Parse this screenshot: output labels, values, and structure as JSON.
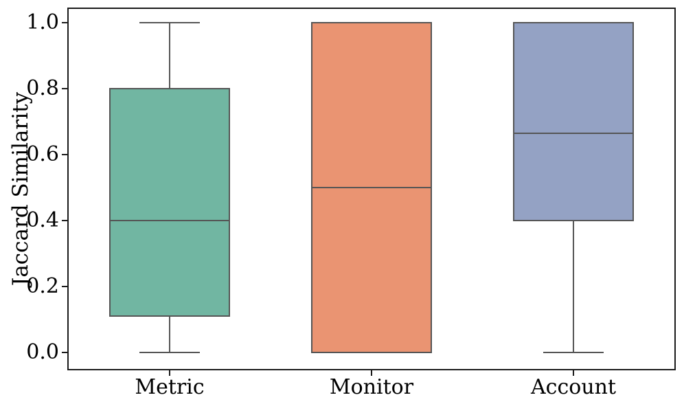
{
  "figure": {
    "background": "#ffffff",
    "spine_color": "#1a1a1a"
  },
  "chart_data": {
    "type": "box",
    "title": "",
    "xlabel": "",
    "ylabel": "Jaccard Similarity",
    "categories": [
      "Metric",
      "Monitor",
      "Account"
    ],
    "series": [
      {
        "name": "Metric",
        "whisker_low": 0.0,
        "q1": 0.11,
        "median": 0.4,
        "q3": 0.8,
        "whisker_high": 1.0,
        "fill_color": "#71b6a2"
      },
      {
        "name": "Monitor",
        "whisker_low": 0.0,
        "q1": 0.0,
        "median": 0.5,
        "q3": 1.0,
        "whisker_high": 1.0,
        "fill_color": "#ea9472"
      },
      {
        "name": "Account",
        "whisker_low": 0.0,
        "q1": 0.4,
        "median": 0.665,
        "q3": 1.0,
        "whisker_high": 1.0,
        "fill_color": "#94a2c4"
      }
    ],
    "yticks": [
      {
        "value": 0.0,
        "label": "0.0"
      },
      {
        "value": 0.2,
        "label": "0.2"
      },
      {
        "value": 0.4,
        "label": "0.4"
      },
      {
        "value": 0.6,
        "label": "0.6"
      },
      {
        "value": 0.8,
        "label": "0.8"
      },
      {
        "value": 1.0,
        "label": "1.0"
      }
    ],
    "ylim": [
      -0.05,
      1.042
    ],
    "grid": false,
    "legend": "none",
    "line_color": "#555555",
    "box_width_fraction": 0.6,
    "cap_width_fraction": 0.5
  }
}
